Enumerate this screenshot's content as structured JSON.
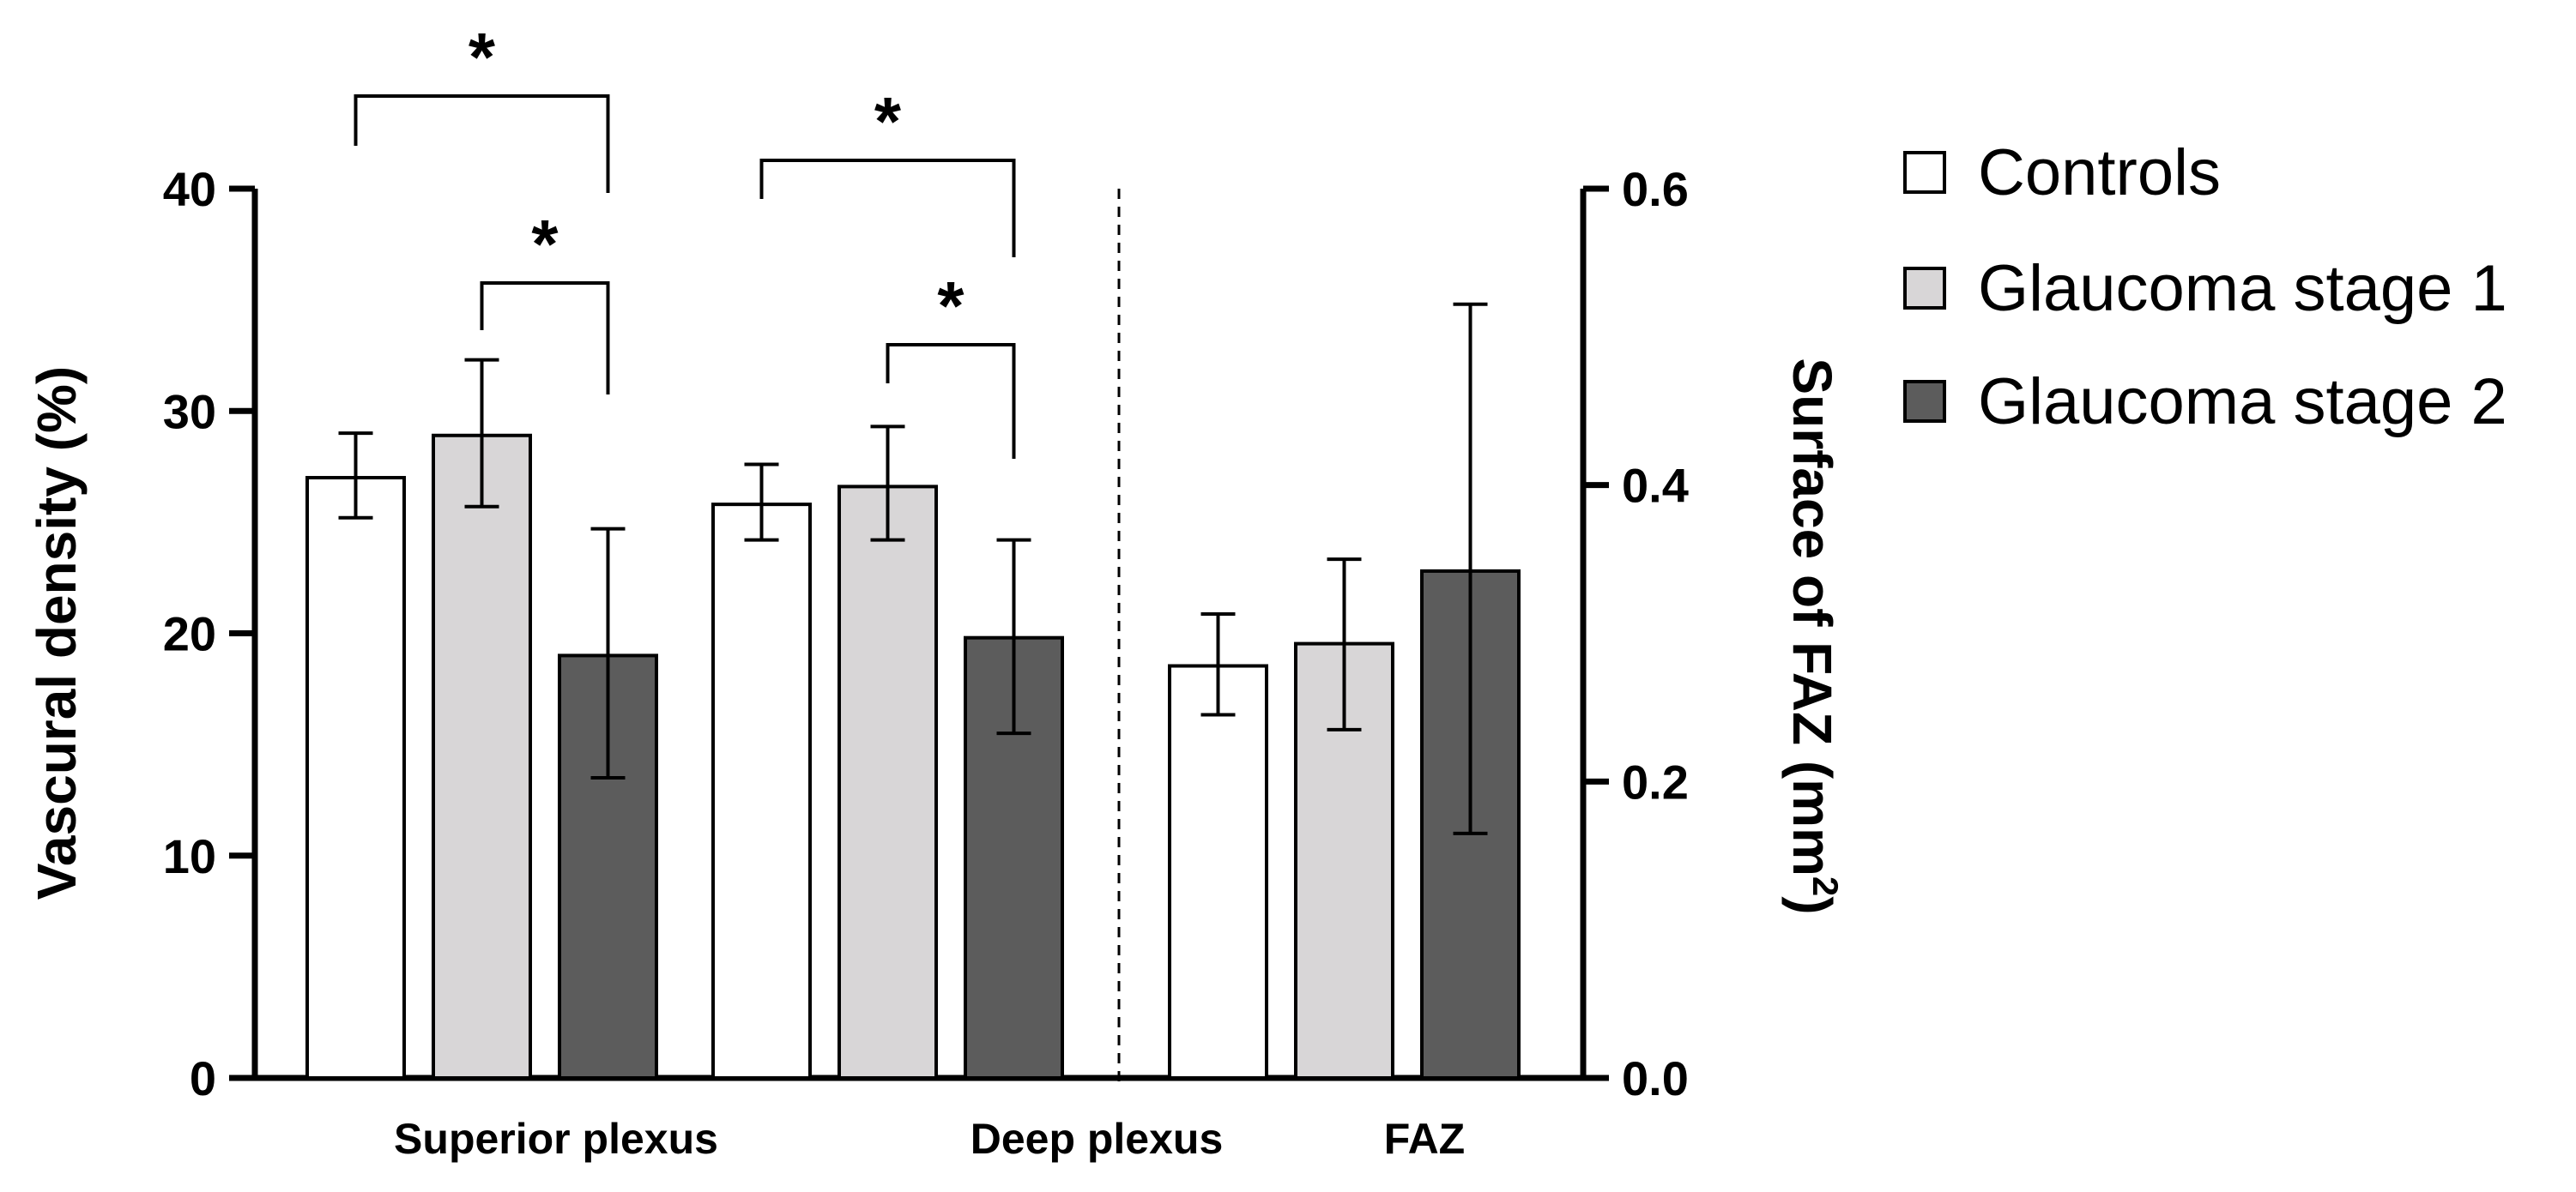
{
  "chart_data": {
    "type": "bar",
    "categories": [
      "Superior plexus",
      "Deep plexus",
      "FAZ"
    ],
    "left_axis": {
      "label_prefix": "Vascural density (%)",
      "range": [
        0,
        40
      ],
      "ticks": [
        "0",
        "10",
        "20",
        "30",
        "40"
      ]
    },
    "right_axis": {
      "label": "Surface of FAZ (mm",
      "label_sup": "2",
      "range": [
        0.0,
        0.6
      ],
      "ticks": [
        "0.0",
        "0.2",
        "0.4",
        "0.6"
      ]
    },
    "series": [
      {
        "name": "Controls",
        "color": "#ffffff",
        "values": [
          27.0,
          25.8,
          0.278
        ],
        "err_low": [
          25.2,
          24.2,
          0.245
        ],
        "err_high": [
          29.0,
          27.6,
          0.313
        ]
      },
      {
        "name": "Glaucoma stage 1",
        "color": "#d8d6d7",
        "values": [
          28.9,
          26.6,
          0.293
        ],
        "err_low": [
          25.7,
          24.2,
          0.235
        ],
        "err_high": [
          32.3,
          29.3,
          0.35
        ]
      },
      {
        "name": "Glaucoma stage 2",
        "color": "#5c5c5c",
        "values": [
          19.0,
          19.8,
          0.342
        ],
        "err_low": [
          13.5,
          15.5,
          0.165
        ],
        "err_high": [
          24.7,
          24.2,
          0.522
        ]
      }
    ],
    "value_axis_per_category": [
      "left",
      "left",
      "right"
    ],
    "significance": [
      {
        "category": 0,
        "from_series": 0,
        "to_series": 2,
        "label": "*"
      },
      {
        "category": 0,
        "from_series": 1,
        "to_series": 2,
        "label": "*"
      },
      {
        "category": 1,
        "from_series": 0,
        "to_series": 2,
        "label": "*"
      },
      {
        "category": 1,
        "from_series": 1,
        "to_series": 2,
        "label": "*"
      }
    ],
    "legend": [
      "Controls",
      "Glaucoma stage 1",
      "Glaucoma stage 2"
    ],
    "legend_position": "top-right"
  }
}
